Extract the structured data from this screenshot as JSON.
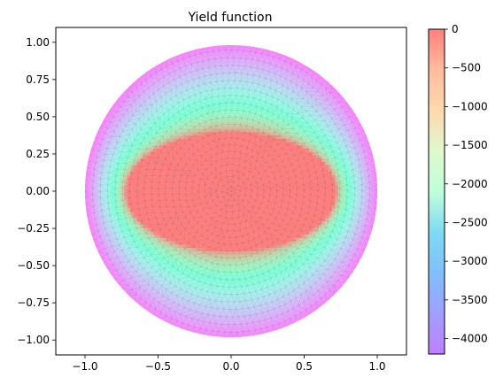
{
  "chart_data": {
    "type": "heatmap",
    "subtype": "triangulated-mesh-contour",
    "title": "Yield function",
    "xlabel": "",
    "ylabel": "",
    "xlim": [
      -1.2,
      1.2
    ],
    "ylim": [
      -1.1,
      1.1
    ],
    "x_ticks": [
      -1.0,
      -0.5,
      0.0,
      0.5,
      1.0
    ],
    "x_tick_labels": [
      "−1.0",
      "−0.5",
      "0.0",
      "0.5",
      "1.0"
    ],
    "y_ticks": [
      1.0,
      0.75,
      0.5,
      0.25,
      0.0,
      -0.25,
      -0.5,
      -0.75,
      -1.0
    ],
    "y_tick_labels": [
      "1.00",
      "0.75",
      "0.50",
      "0.25",
      "0.00",
      "−0.25",
      "−0.50",
      "−0.75",
      "−1.00"
    ],
    "domain": "unit disk",
    "field": {
      "inner_region": "ellipse semi-axes a=0.72 (x), b=0.40 (y), value 0",
      "description": "value 0 inside central ellipse, decreasing outward to about -4200 at the disk edge"
    },
    "colorbar": {
      "colormap": "rainbow",
      "alpha": 0.5,
      "vmin": -4200,
      "vmax": 0,
      "ticks": [
        0,
        -500,
        -1000,
        -1500,
        -2000,
        -2500,
        -3000,
        -3500,
        -4000
      ],
      "tick_labels": [
        "0",
        "−500",
        "−1000",
        "−1500",
        "−2000",
        "−2500",
        "−3000",
        "−3500",
        "−4000"
      ]
    },
    "grid": false,
    "legend": "none"
  }
}
